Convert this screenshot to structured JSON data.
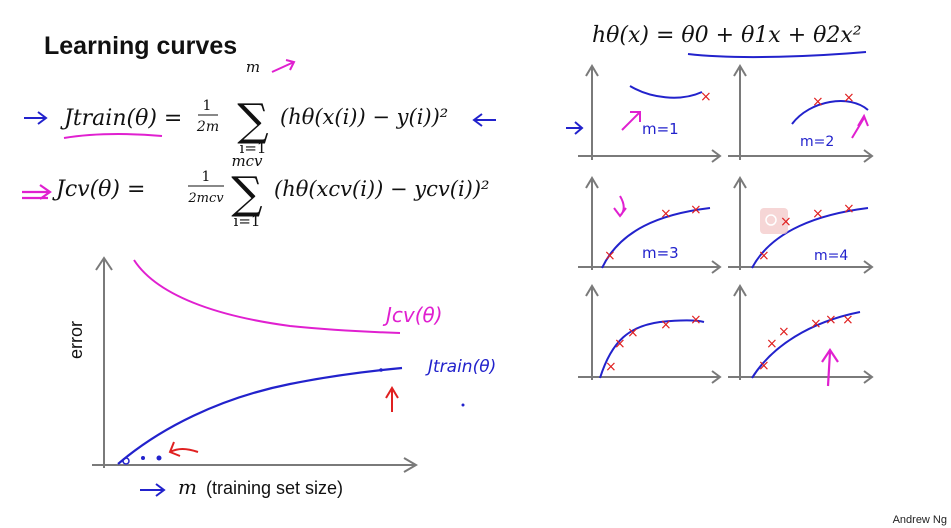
{
  "slide": {
    "title": "Learning curves",
    "credit": "Andrew Ng",
    "hypothesis_label": "hθ(x) = θ0 + θ1x + θ2x²",
    "j_train_formula": {
      "lhs": "Jtrain(θ) =",
      "frac_num": "1",
      "frac_den": "2m",
      "sum_top": "m",
      "sum_bottom": "i=1",
      "body": "(hθ(x(i)) − y(i))²"
    },
    "j_cv_formula": {
      "lhs": "Jcv(θ) =",
      "frac_num": "1",
      "frac_den": "2mcv",
      "sum_top": "mcv",
      "sum_bottom": "i=1",
      "body": "(hθ(xcv(i)) − ycv(i))²"
    },
    "main_plot": {
      "ylabel": "error",
      "xlabel_var": "m",
      "xlabel_text": "(training set size)",
      "cv_curve_label": "Jcv(θ)",
      "train_curve_label": "Jtrain(θ)"
    },
    "small_plots": [
      {
        "label": "m=1"
      },
      {
        "label": "m=2"
      },
      {
        "label": "m=3"
      },
      {
        "label": "m=4"
      },
      {
        "label": ""
      },
      {
        "label": ""
      }
    ],
    "colors": {
      "ink_blue": "#2222cc",
      "ink_pink": "#e020d0",
      "ink_red": "#e02020",
      "axis_gray": "#7a7a7a"
    }
  }
}
